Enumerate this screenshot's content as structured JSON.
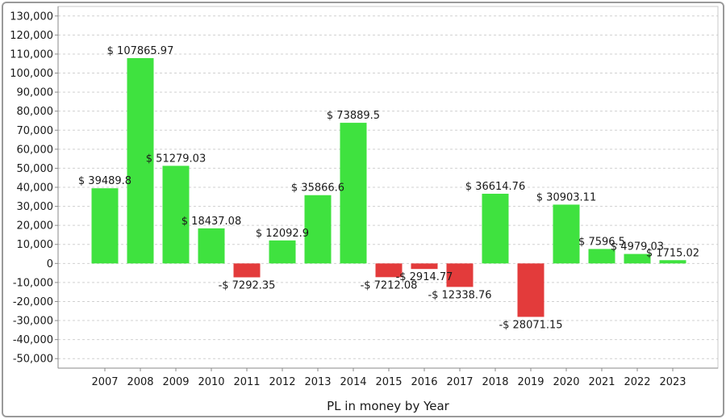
{
  "chart_data": {
    "type": "bar",
    "title": "",
    "xlabel": "PL in money by Year",
    "ylabel": "",
    "ylim": [
      -55000,
      135000
    ],
    "yticks": [
      130000,
      120000,
      110000,
      100000,
      90000,
      80000,
      70000,
      60000,
      50000,
      40000,
      30000,
      20000,
      10000,
      0,
      -10000,
      -20000,
      -30000,
      -40000,
      -50000
    ],
    "ytick_labels": [
      "130,000",
      "120,000",
      "110,000",
      "100,000",
      "90,000",
      "80,000",
      "70,000",
      "60,000",
      "50,000",
      "40,000",
      "30,000",
      "20,000",
      "10,000",
      "0",
      "-10,000",
      "-20,000",
      "-30,000",
      "-40,000",
      "-50,000"
    ],
    "grid": true,
    "legend": "none",
    "categories": [
      "2007",
      "2008",
      "2009",
      "2010",
      "2011",
      "2012",
      "2013",
      "2014",
      "2015",
      "2016",
      "2017",
      "2018",
      "2019",
      "2020",
      "2021",
      "2022",
      "2023"
    ],
    "values": [
      39489.8,
      107865.97,
      51279.03,
      18437.08,
      -7292.35,
      12092.9,
      35866.6,
      73889.5,
      -7212.08,
      -2914.77,
      -12338.76,
      36614.76,
      -28071.15,
      30903.11,
      7596.5,
      4979.03,
      1715.02
    ],
    "data_labels": [
      "$ 39489.8",
      "$ 107865.97",
      "$ 51279.03",
      "$ 18437.08",
      "-$ 7292.35",
      "$ 12092.9",
      "$ 35866.6",
      "$ 73889.5",
      "-$ 7212.08",
      "-$ 2914.77",
      "-$ 12338.76",
      "$ 36614.76",
      "-$ 28071.15",
      "$ 30903.11",
      "$ 7596.5",
      "$ 4979.03",
      "$ 1715.02"
    ],
    "colors": {
      "positive": "#3fe23f",
      "negative": "#e33b3b",
      "grid": "#d0d0d0",
      "axis": "#8a8a8a"
    }
  }
}
